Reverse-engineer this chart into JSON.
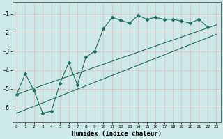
{
  "xlabel": "Humidex (Indice chaleur)",
  "ylabel": "",
  "xlim": [
    -0.5,
    23.5
  ],
  "ylim": [
    -6.8,
    -0.4
  ],
  "xticks": [
    0,
    1,
    2,
    3,
    4,
    5,
    6,
    7,
    8,
    9,
    10,
    11,
    12,
    13,
    14,
    15,
    16,
    17,
    18,
    19,
    20,
    21,
    22,
    23
  ],
  "yticks": [
    -6,
    -5,
    -4,
    -3,
    -2,
    -1
  ],
  "background_color": "#cde8e8",
  "grid_color": "#e8b8b8",
  "line_color": "#1a6b5a",
  "line1_x": [
    0,
    1,
    2,
    3,
    4,
    5,
    6,
    7,
    8,
    9,
    10,
    11,
    12,
    13,
    14,
    15,
    16,
    17,
    18,
    19,
    20,
    21,
    22
  ],
  "line1_y": [
    -5.3,
    -4.2,
    -5.1,
    -6.3,
    -6.2,
    -4.7,
    -3.6,
    -4.8,
    -3.3,
    -3.0,
    -1.8,
    -1.2,
    -1.35,
    -1.5,
    -1.1,
    -1.3,
    -1.2,
    -1.3,
    -1.3,
    -1.4,
    -1.5,
    -1.3,
    -1.7
  ],
  "line2_x": [
    0,
    23
  ],
  "line2_y": [
    -5.3,
    -1.6
  ],
  "line3_x": [
    0,
    23
  ],
  "line3_y": [
    -6.3,
    -2.1
  ],
  "marker": "D",
  "markersize": 2.5,
  "linewidth": 0.8
}
